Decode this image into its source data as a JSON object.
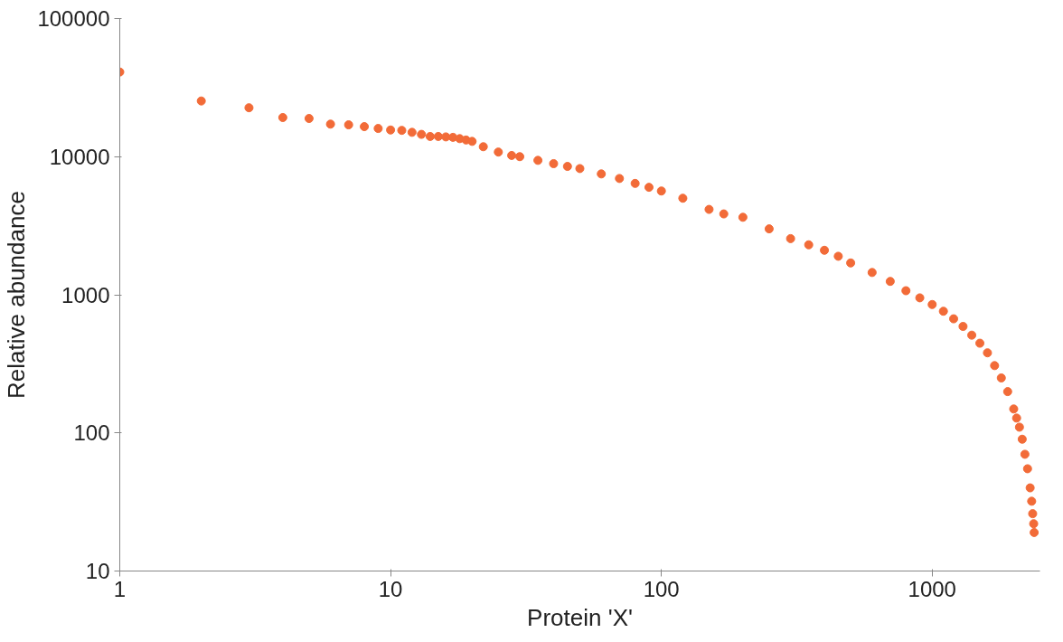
{
  "chart_data": {
    "type": "scatter",
    "xlabel": "Protein 'X'",
    "ylabel": "Relative abundance",
    "log": "xy",
    "grid": false,
    "marker": "circle",
    "xlim": [
      1,
      2500
    ],
    "ylim": [
      10,
      100000
    ],
    "xticks": [
      1,
      10,
      100,
      1000
    ],
    "yticks": [
      10,
      100,
      1000,
      10000,
      100000
    ],
    "series": [
      {
        "color": "#f26b38",
        "x": [
          1,
          2,
          3,
          4,
          5,
          6,
          7,
          8,
          9,
          10,
          11,
          12,
          13,
          14,
          15,
          16,
          17,
          18,
          19,
          20,
          22,
          25,
          28,
          30,
          35,
          40,
          45,
          50,
          60,
          70,
          80,
          90,
          100,
          120,
          150,
          170,
          200,
          250,
          300,
          350,
          400,
          450,
          500,
          600,
          700,
          800,
          900,
          1000,
          1100,
          1200,
          1300,
          1400,
          1500,
          1600,
          1700,
          1800,
          1900,
          2000,
          2050,
          2100,
          2150,
          2200,
          2250,
          2300,
          2330,
          2350,
          2370,
          2380
        ],
        "values": [
          41000,
          25300,
          22600,
          19200,
          18900,
          17200,
          17000,
          16500,
          16000,
          15600,
          15500,
          15000,
          14500,
          14000,
          14000,
          13900,
          13800,
          13500,
          13200,
          12900,
          11800,
          10800,
          10200,
          10000,
          9400,
          8900,
          8500,
          8200,
          7500,
          6950,
          6400,
          6000,
          5640,
          5000,
          4150,
          3850,
          3640,
          3000,
          2550,
          2300,
          2100,
          1900,
          1700,
          1450,
          1250,
          1070,
          950,
          850,
          760,
          670,
          590,
          510,
          446,
          380,
          307,
          250,
          199,
          149,
          128,
          110,
          90,
          70,
          55,
          40,
          32,
          26,
          22,
          19
        ]
      }
    ]
  }
}
